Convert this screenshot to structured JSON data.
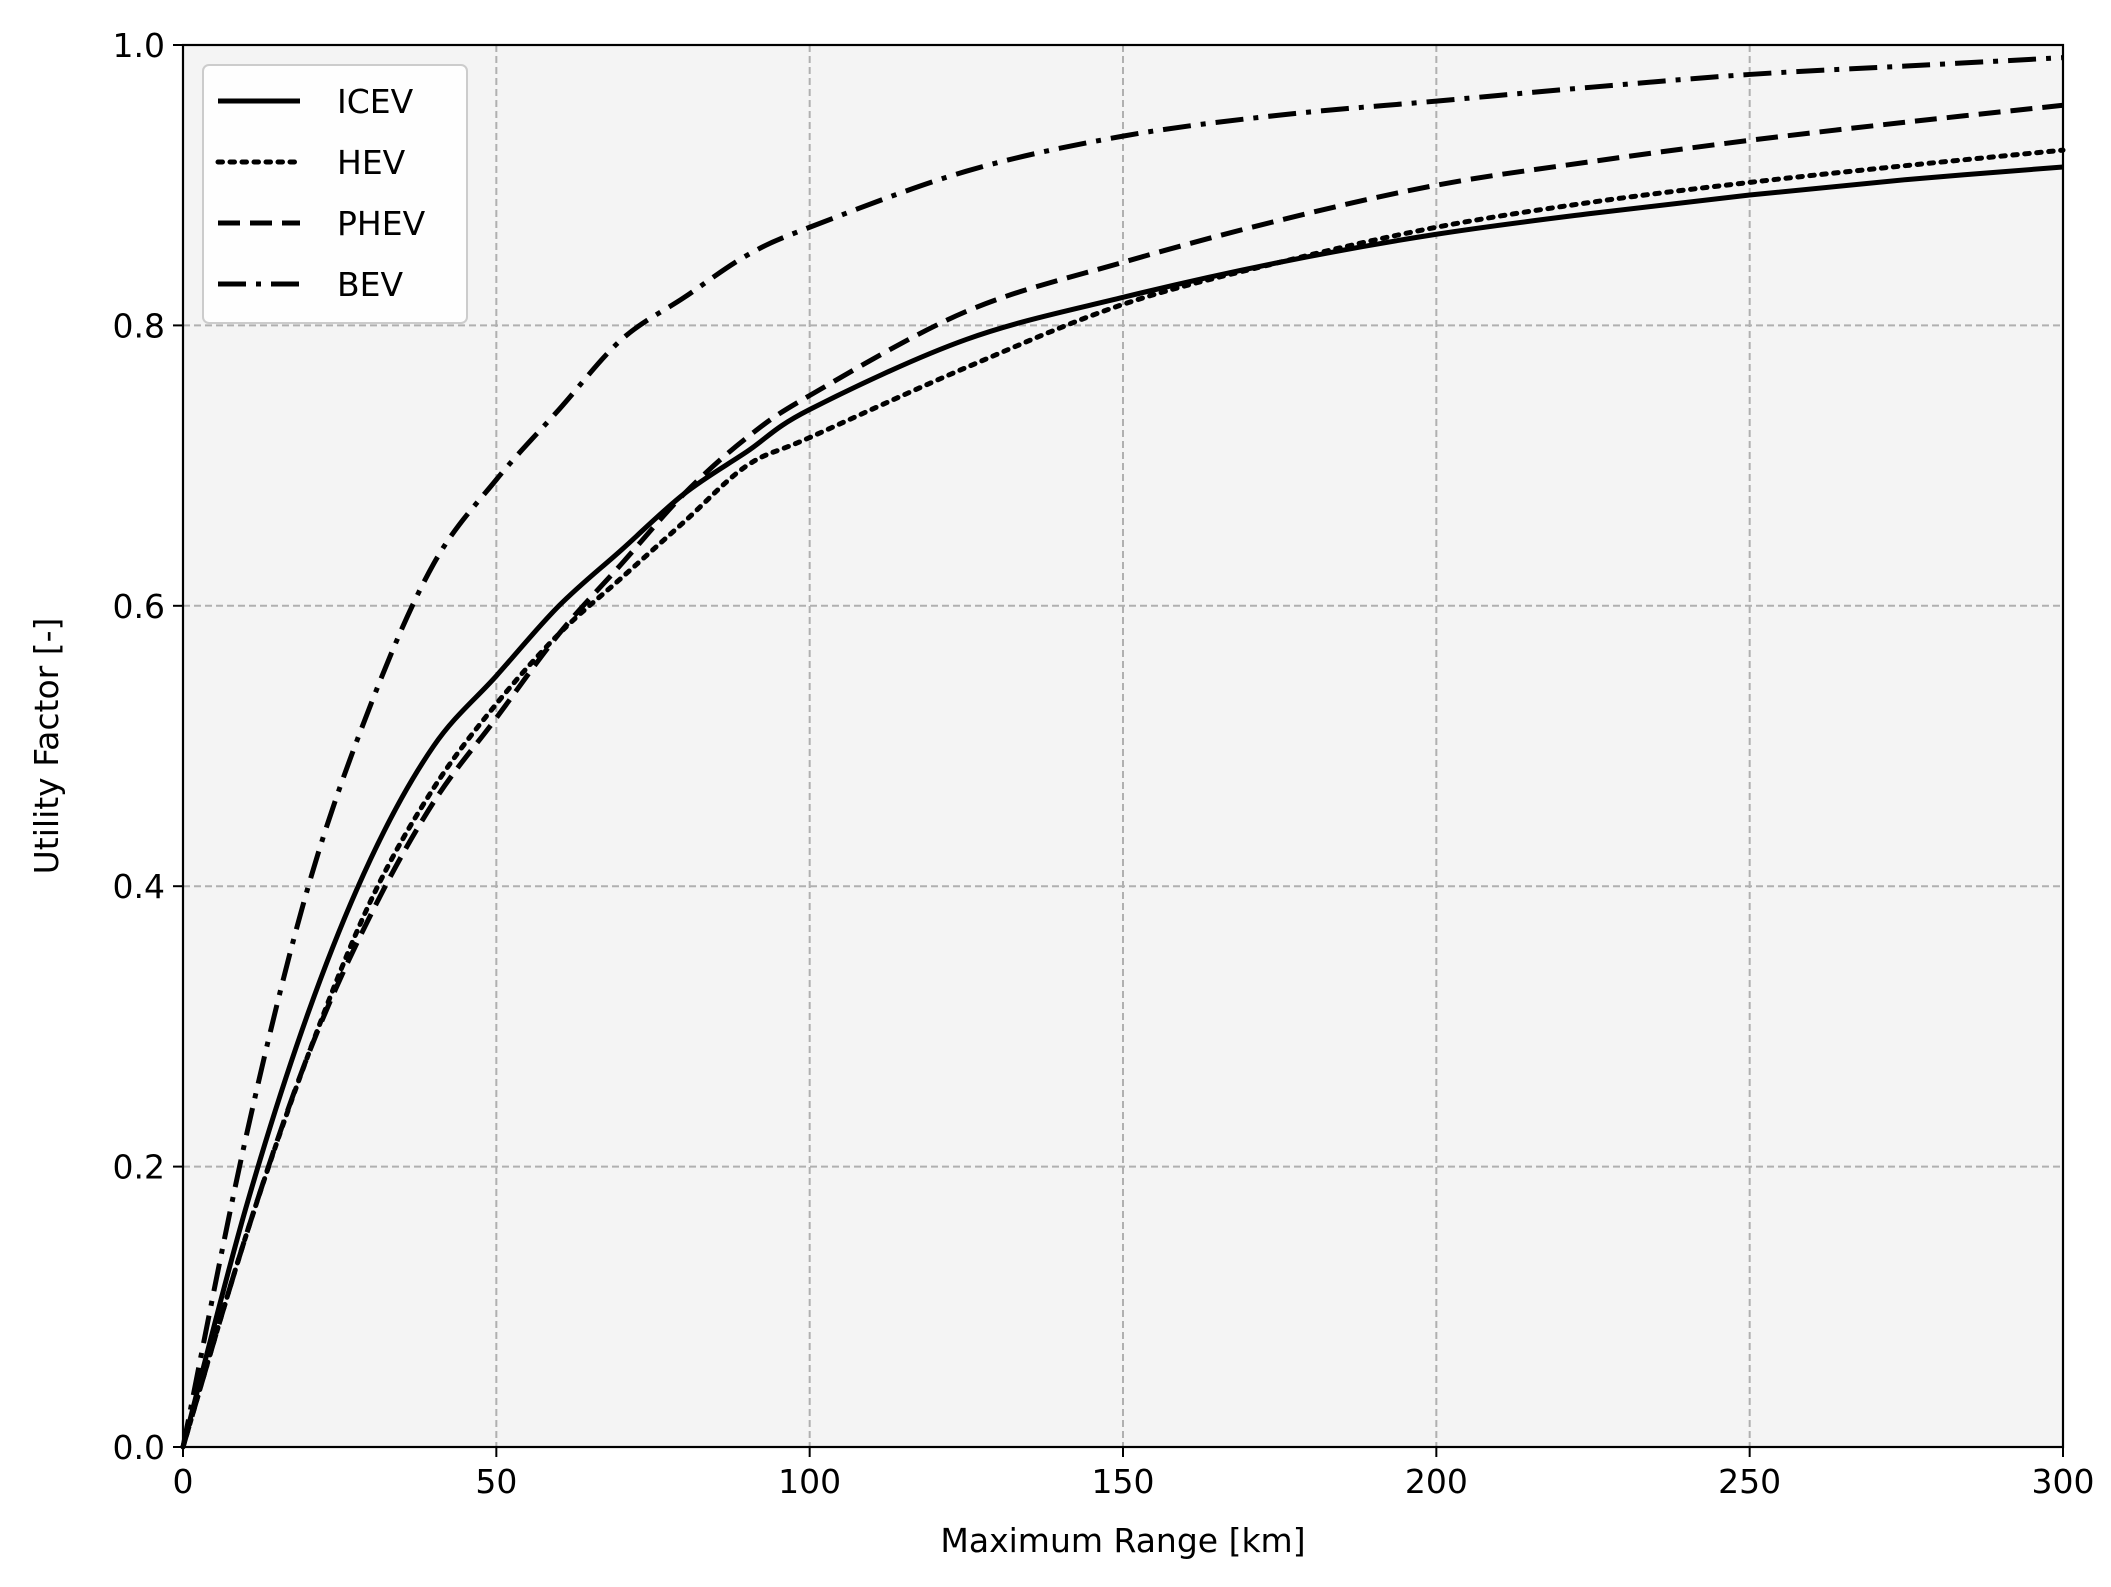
{
  "chart_data": {
    "type": "line",
    "title": "",
    "xlabel": "Maximum Range [km]",
    "ylabel": "Utility Factor [-]",
    "xlim": [
      0,
      300
    ],
    "ylim": [
      0,
      1.0
    ],
    "xticks": [
      "0",
      "50",
      "100",
      "150",
      "200",
      "250",
      "300"
    ],
    "yticks": [
      "0.0",
      "0.2",
      "0.4",
      "0.6",
      "0.8",
      "1.0"
    ],
    "grid": true,
    "legend_position": "top-left",
    "plot_background": "#f4f4f4",
    "grid_color": "#b0b0b0",
    "line_color": "#000000",
    "x": [
      0,
      10,
      20,
      30,
      40,
      50,
      60,
      70,
      80,
      90,
      100,
      125,
      150,
      175,
      200,
      225,
      250,
      275,
      300
    ],
    "series": [
      {
        "name": "ICEV",
        "style": "solid",
        "values": [
          0.0,
          0.17,
          0.31,
          0.42,
          0.5,
          0.55,
          0.6,
          0.64,
          0.68,
          0.71,
          0.74,
          0.79,
          0.82,
          0.845,
          0.865,
          0.88,
          0.893,
          0.904,
          0.913
        ]
      },
      {
        "name": "HEV",
        "style": "dotted",
        "values": [
          0.0,
          0.15,
          0.28,
          0.39,
          0.47,
          0.53,
          0.58,
          0.62,
          0.66,
          0.7,
          0.72,
          0.77,
          0.815,
          0.845,
          0.87,
          0.888,
          0.902,
          0.914,
          0.925
        ]
      },
      {
        "name": "PHEV",
        "style": "dashed",
        "values": [
          0.0,
          0.15,
          0.28,
          0.38,
          0.46,
          0.52,
          0.58,
          0.63,
          0.68,
          0.72,
          0.75,
          0.81,
          0.845,
          0.875,
          0.9,
          0.917,
          0.932,
          0.945,
          0.957
        ]
      },
      {
        "name": "BEV",
        "style": "dashdot",
        "values": [
          0.0,
          0.22,
          0.4,
          0.53,
          0.63,
          0.69,
          0.74,
          0.79,
          0.82,
          0.85,
          0.87,
          0.91,
          0.935,
          0.95,
          0.96,
          0.97,
          0.979,
          0.985,
          0.991
        ]
      }
    ]
  }
}
